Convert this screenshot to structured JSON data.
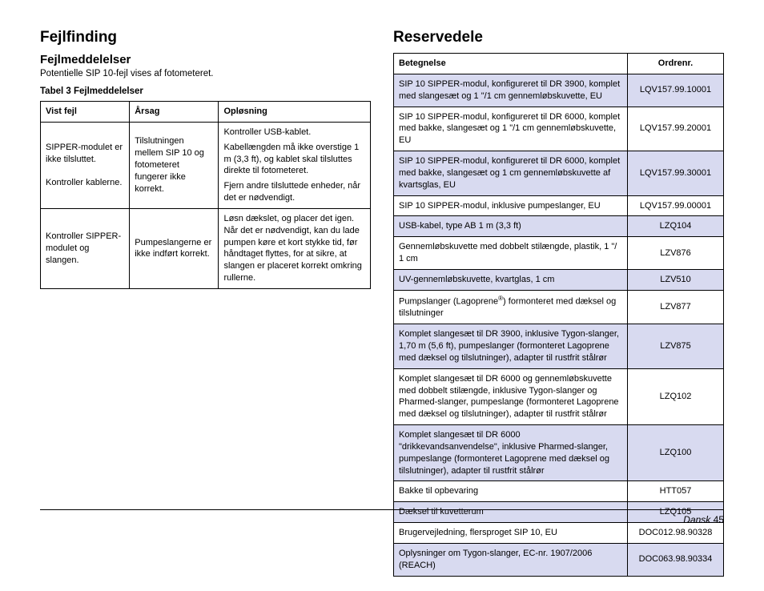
{
  "left": {
    "h1": "Fejlfinding",
    "h2": "Fejlmeddelelser",
    "intro": "Potentielle SIP 10-fejl vises af fotometeret.",
    "tableCaption": "Tabel 3 Fejlmeddelelser",
    "headers": {
      "c1": "Vist fejl",
      "c2": "Årsag",
      "c3": "Opløsning"
    },
    "rows": [
      {
        "fault_a": "SIPPER-modulet er ikke tilsluttet.",
        "fault_b": "Kontroller kablerne.",
        "cause": "Tilslutningen mellem SIP 10 og fotometeret fungerer ikke korrekt.",
        "res1": "Kontroller USB-kablet.",
        "res2": "Kabellængden må ikke overstige 1 m (3,3 ft), og kablet skal tilsluttes direkte til fotometeret.",
        "res3": "Fjern andre tilsluttede enheder, når det er nødvendigt."
      },
      {
        "fault": "Kontroller SIPPER-modulet og slangen.",
        "cause": "Pumpeslangerne er ikke indført korrekt.",
        "res": "Løsn dækslet, og placer det igen. Når det er nødvendigt, kan du lade pumpen køre et kort stykke tid, før håndtaget flyttes, for at sikre, at slangen er placeret korrekt omkring rullerne."
      }
    ]
  },
  "right": {
    "h1": "Reservedele",
    "headers": {
      "c1": "Betegnelse",
      "c2": "Ordrenr."
    },
    "rows": [
      {
        "d": "SIP 10 SIPPER-modul, konfigureret til DR 3900, komplet med slangesæt og 1 \"/1 cm gennemløbskuvette, EU",
        "n": "LQV157.99.10001"
      },
      {
        "d": "SIP 10 SIPPER-modul, konfigureret til DR 6000, komplet med bakke, slangesæt og 1 \"/1 cm gennemløbskuvette, EU",
        "n": "LQV157.99.20001"
      },
      {
        "d": "SIP 10 SIPPER-modul, konfigureret til DR 6000, komplet med bakke, slangesæt og 1 cm gennemløbskuvette af kvartsglas, EU",
        "n": "LQV157.99.30001"
      },
      {
        "d": "SIP 10 SIPPER-modul, inklusive pumpeslanger, EU",
        "n": "LQV157.99.00001"
      },
      {
        "d": "USB-kabel, type AB 1 m (3,3 ft)",
        "n": "LZQ104"
      },
      {
        "d": "Gennemløbskuvette med dobbelt stilængde, plastik, 1 \"/ 1 cm",
        "n": "LZV876"
      },
      {
        "d": "UV-gennemløbskuvette, kvartglas, 1 cm",
        "n": "LZV510"
      },
      {
        "d_pre": "Pumpslanger (Lagoprene",
        "d_post": ") formonteret med dæksel og tilslutninger",
        "sup": "®",
        "n": "LZV877"
      },
      {
        "d": "Komplet slangesæt til DR 3900, inklusive Tygon-slanger, 1,70 m (5,6 ft), pumpeslanger (formonteret Lagoprene med dæksel og tilslutninger), adapter til rustfrit stålrør",
        "n": "LZV875"
      },
      {
        "d": "Komplet slangesæt til DR 6000 og gennemløbskuvette med dobbelt stilængde, inklusive Tygon-slanger og Pharmed-slanger, pumpeslange (formonteret Lagoprene med dæksel og tilslutninger), adapter til rustfrit stålrør",
        "n": "LZQ102"
      },
      {
        "d": "Komplet slangesæt til DR 6000 \"drikkevandsanvendelse\", inklusive Pharmed-slanger, pumpeslange (formonteret Lagoprene med dæksel og tilslutninger), adapter til rustfrit stålrør",
        "n": "LZQ100"
      },
      {
        "d": "Bakke til opbevaring",
        "n": "HTT057"
      },
      {
        "d": "Dæksel til kuvetterum",
        "n": "LZQ105"
      },
      {
        "d": "Brugervejledning, flersproget SIP 10, EU",
        "n": "DOC012.98.90328"
      },
      {
        "d": "Oplysninger om Tygon-slanger, EC-nr. 1907/2006 (REACH)",
        "n": "DOC063.98.90334"
      }
    ]
  },
  "footer": {
    "lang": "Dansk",
    "page": "45"
  }
}
